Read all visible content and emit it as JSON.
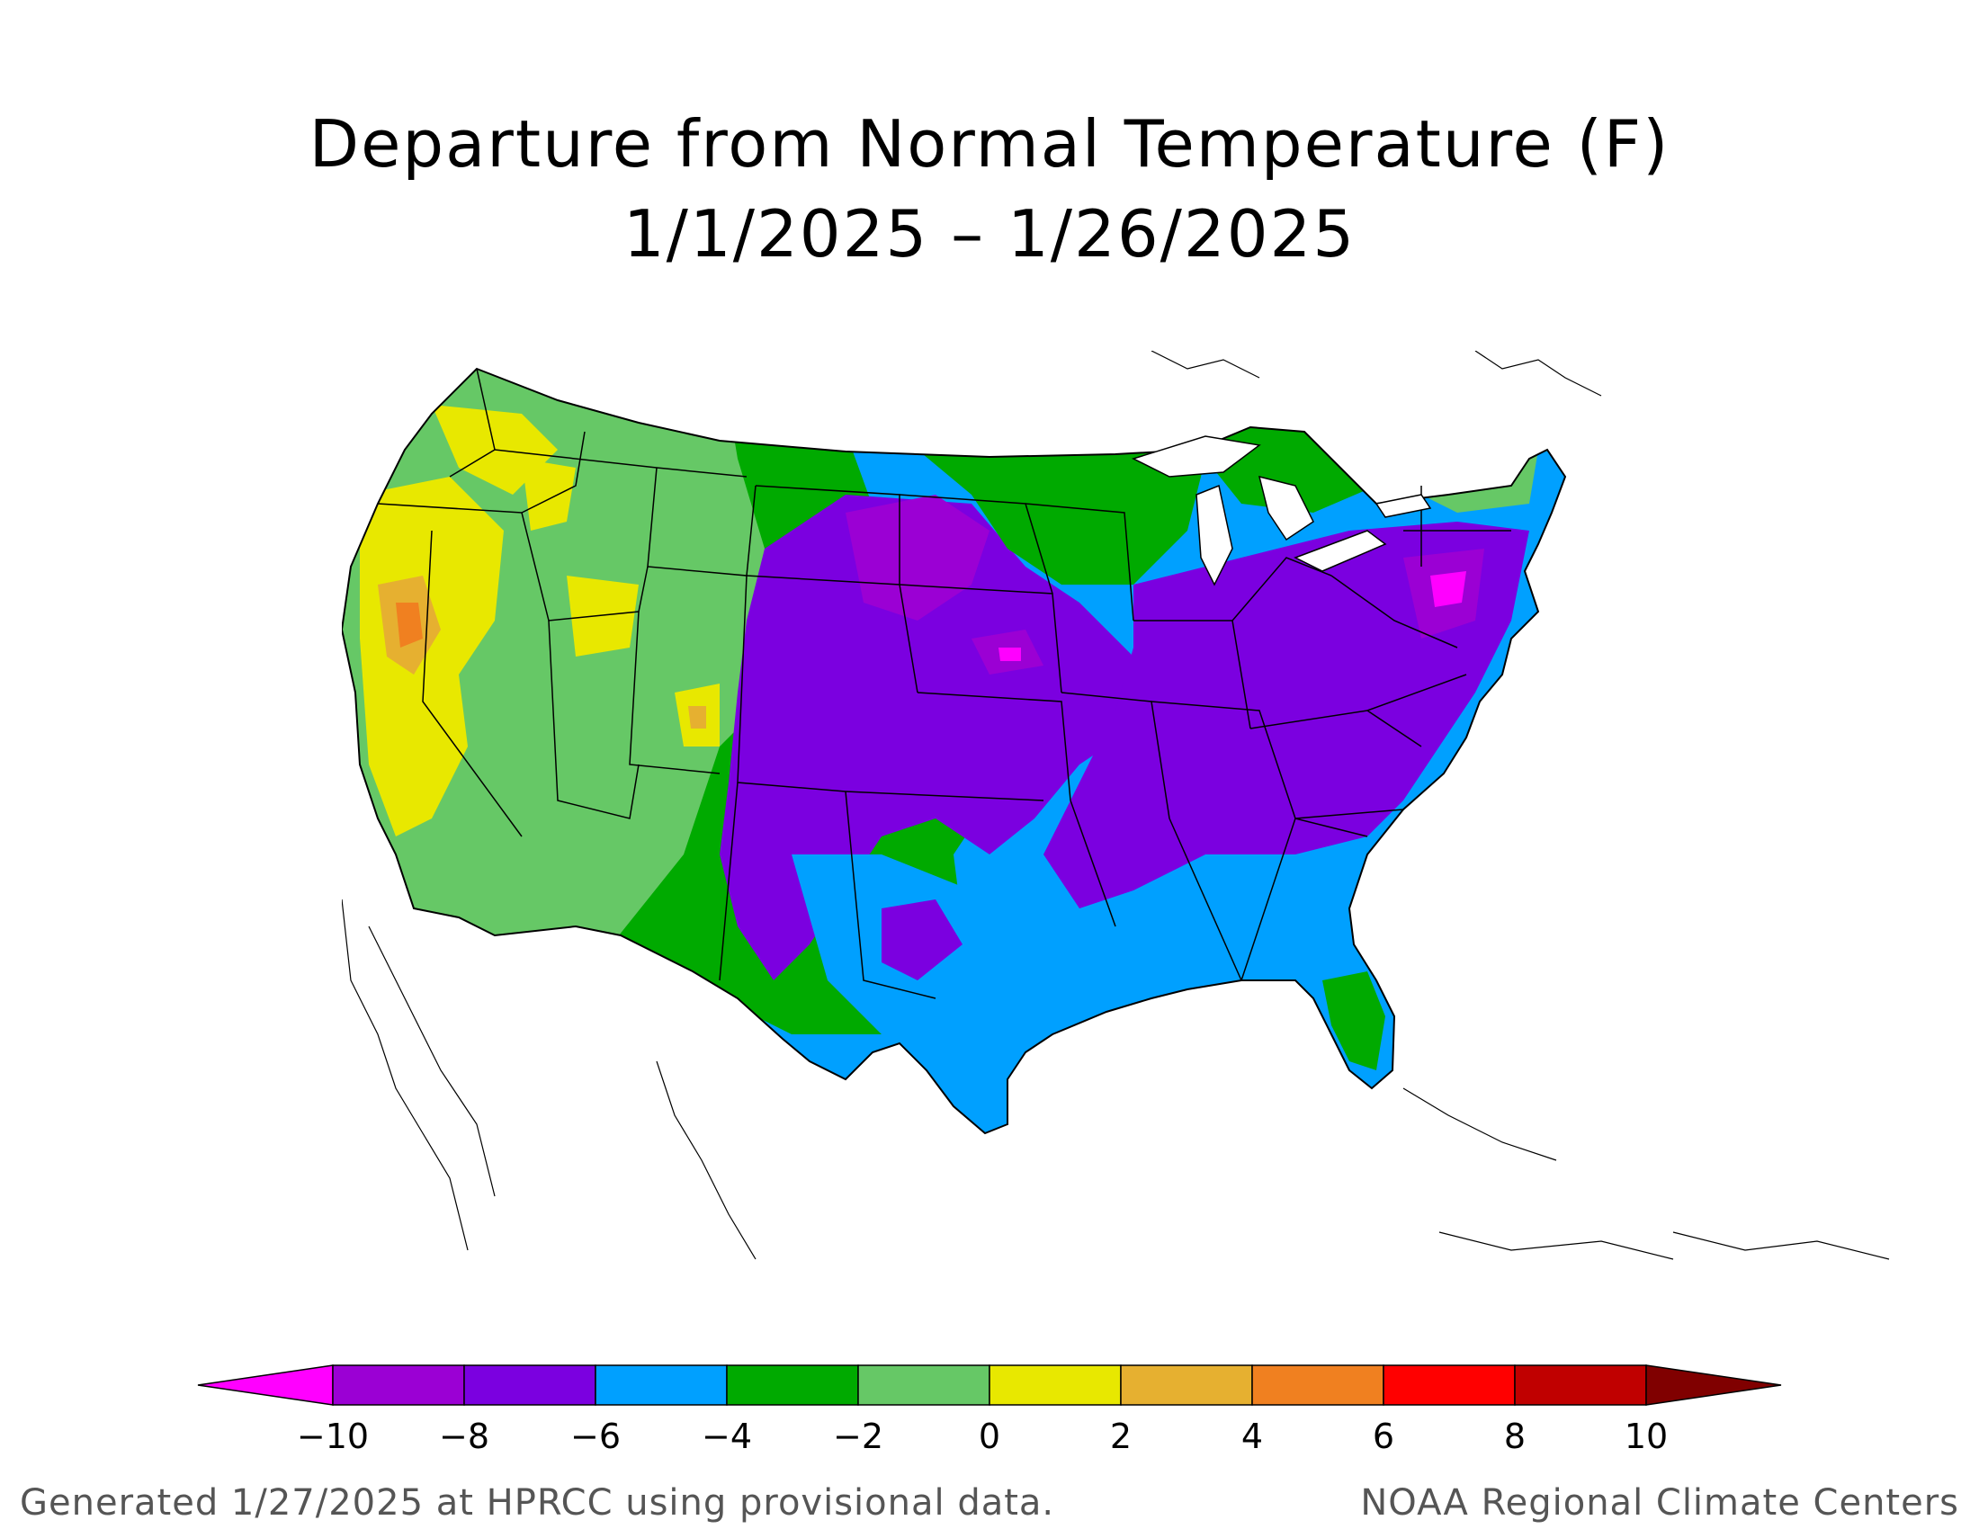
{
  "title": {
    "line1": "Departure from Normal Temperature (F)",
    "line2": "1/1/2025 – 1/26/2025"
  },
  "legend": {
    "ticks": [
      "−10",
      "−8",
      "−6",
      "−4",
      "−2",
      "0",
      "2",
      "4",
      "6",
      "8",
      "10"
    ],
    "colors": [
      "#ff00ff",
      "#9b00d4",
      "#7b00e0",
      "#00a0ff",
      "#00aa00",
      "#66c866",
      "#e8e800",
      "#e6b030",
      "#f08020",
      "#ff0000",
      "#c00000",
      "#800000"
    ]
  },
  "map": {
    "region": "contiguous-united-states",
    "palette": {
      "lt_-10": "#ff00ff",
      "-10_-8": "#9b00d4",
      "-8_-6": "#7b00e0",
      "-6_-4": "#00a0ff",
      "-4_-2": "#00aa00",
      "-2_0": "#66c866",
      "0_2": "#e8e800",
      "2_4": "#e6b030",
      "4_6": "#f08020"
    }
  },
  "footer": {
    "left": "Generated 1/27/2025 at HPRCC using provisional data.",
    "right": "NOAA Regional Climate Centers"
  }
}
